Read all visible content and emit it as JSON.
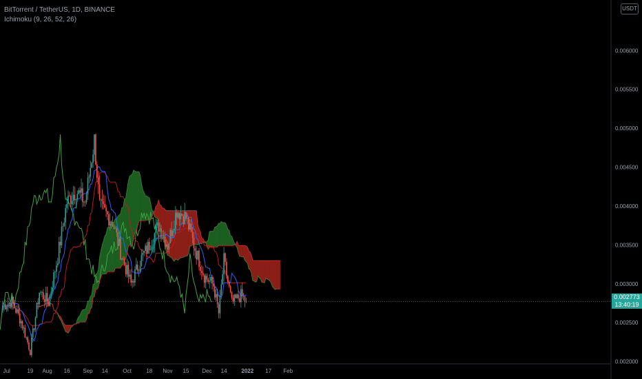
{
  "header": {
    "symbol_line": "BitTorrent / TetherUS, 1D, BINANCE",
    "indicator_line": "Ichimoku (9, 26, 52, 26)"
  },
  "currency_button": "USDT",
  "price_tag": {
    "price": "0.002773",
    "countdown": "13:40:19"
  },
  "colors": {
    "background": "#000000",
    "up_candle": "#26a69a",
    "down_candle": "#ef5350",
    "tenkan": "#2962ff",
    "kijun": "#b71c1c",
    "chikou": "#43a047",
    "cloud_bull": "#1b5e20",
    "cloud_bear": "#8b1f17",
    "axis_text": "#9aa0ab"
  },
  "chart_data": {
    "type": "candlestick",
    "title": "BitTorrent / TetherUS, 1D, BINANCE",
    "indicator": "Ichimoku (9, 26, 52, 26)",
    "y_ticks": [
      "0.002000",
      "0.002500",
      "0.003000",
      "0.003500",
      "0.004000",
      "0.004500",
      "0.005000",
      "0.005500",
      "0.006000"
    ],
    "x_ticks": [
      "Jul",
      "19",
      "Aug",
      "16",
      "Sep",
      "14",
      "Oct",
      "18",
      "Nov",
      "15",
      "Dec",
      "14",
      "2022",
      "17",
      "Feb"
    ],
    "ylim": [
      0.00197,
      0.00665
    ],
    "x_range_days": [
      "2021-06-28",
      "2022-02-07"
    ],
    "last_price": 0.002773,
    "close_series": [
      [
        "2021-06-28",
        0.00272
      ],
      [
        "2021-07-05",
        0.00277
      ],
      [
        "2021-07-12",
        0.00252
      ],
      [
        "2021-07-19",
        0.00214
      ],
      [
        "2021-07-26",
        0.0029
      ],
      [
        "2021-08-02",
        0.00276
      ],
      [
        "2021-08-09",
        0.00335
      ],
      [
        "2021-08-16",
        0.00405
      ],
      [
        "2021-08-23",
        0.0042
      ],
      [
        "2021-08-30",
        0.00405
      ],
      [
        "2021-09-06",
        0.00485
      ],
      [
        "2021-09-10",
        0.004
      ],
      [
        "2021-09-20",
        0.0038
      ],
      [
        "2021-09-27",
        0.00335
      ],
      [
        "2021-10-04",
        0.003
      ],
      [
        "2021-10-11",
        0.0033
      ],
      [
        "2021-10-18",
        0.0035
      ],
      [
        "2021-10-25",
        0.00375
      ],
      [
        "2021-11-01",
        0.0035
      ],
      [
        "2021-11-08",
        0.00395
      ],
      [
        "2021-11-15",
        0.00385
      ],
      [
        "2021-11-22",
        0.00345
      ],
      [
        "2021-11-29",
        0.0031
      ],
      [
        "2021-12-06",
        0.00298
      ],
      [
        "2021-12-10",
        0.00262
      ],
      [
        "2021-12-14",
        0.0033
      ],
      [
        "2021-12-20",
        0.00275
      ],
      [
        "2021-12-27",
        0.00285
      ],
      [
        "2021-12-31",
        0.002773
      ]
    ]
  }
}
